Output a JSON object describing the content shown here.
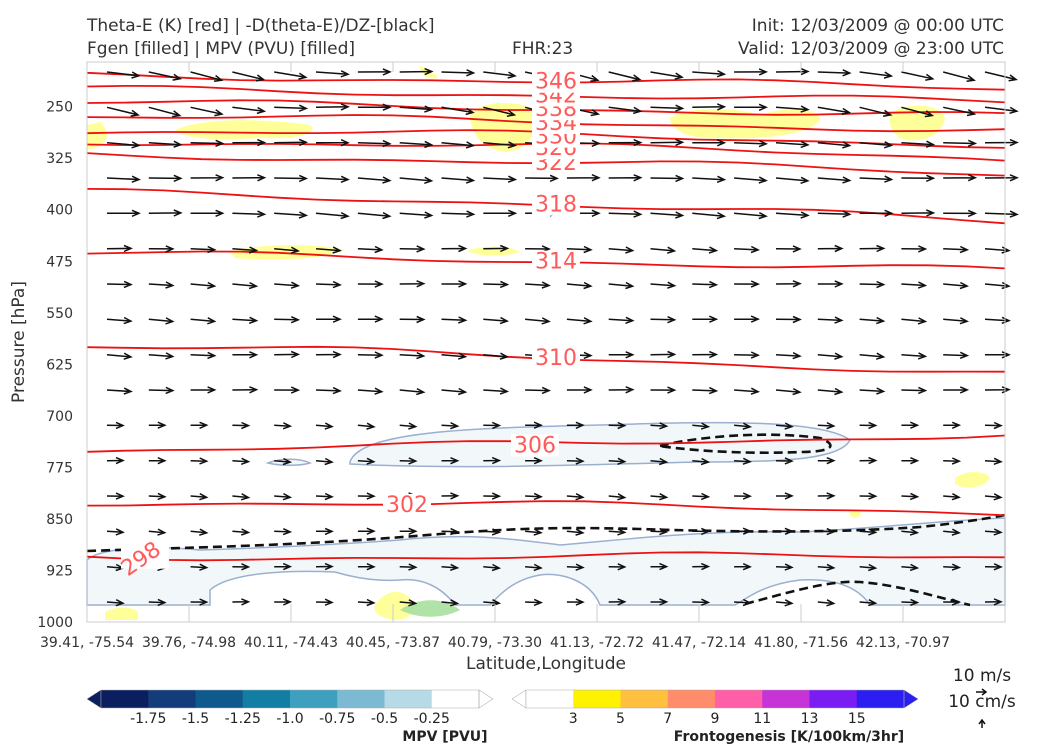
{
  "header": {
    "title_line1": "Theta-E (K) [red] | -D(theta-E)/DZ-[black]",
    "title_line2": "Fgen [filled] | MPV (PVU) [filled]",
    "fhr": "FHR:23",
    "init": "Init: 12/03/2009 @ 00:00 UTC",
    "valid": "Valid: 12/03/2009 @ 23:00 UTC"
  },
  "chart_data": {
    "type": "cross-section",
    "ylabel": "Pressure [hPa]",
    "xlabel": "Latitude,Longitude",
    "y_ticks": [
      "250",
      "325",
      "400",
      "475",
      "550",
      "625",
      "700",
      "775",
      "850",
      "925",
      "1000"
    ],
    "y_values": [
      250,
      325,
      400,
      475,
      550,
      625,
      700,
      775,
      850,
      925,
      1000
    ],
    "ylim": [
      1000,
      185
    ],
    "x_ticks": [
      "39.41, -75.54",
      "39.76, -74.98",
      "40.11, -74.43",
      "40.45, -73.87",
      "40.79, -73.30",
      "41.13, -72.72",
      "41.47, -72.14",
      "41.80, -71.56",
      "42.13, -70.97"
    ],
    "theta_e_contours": [
      {
        "label": "298",
        "pressure_at_start": 905,
        "pressure_at_end": 905
      },
      {
        "label": "302",
        "pressure_at_start": 825,
        "pressure_at_end": 840
      },
      {
        "label": "306",
        "pressure_at_start": 750,
        "pressure_at_end": 725
      },
      {
        "label": "310",
        "pressure_at_start": 600,
        "pressure_at_end": 640
      },
      {
        "label": "314",
        "pressure_at_start": 465,
        "pressure_at_end": 490
      },
      {
        "label": "318",
        "pressure_at_start": 375,
        "pressure_at_end": 420
      },
      {
        "label": "322",
        "pressure_at_start": 320,
        "pressure_at_end": 350
      },
      {
        "label": "326",
        "pressure_at_start": 300,
        "pressure_at_end": 325
      },
      {
        "label": "330",
        "pressure_at_start": 285,
        "pressure_at_end": 305
      },
      {
        "label": "334",
        "pressure_at_start": 265,
        "pressure_at_end": 285
      },
      {
        "label": "338",
        "pressure_at_start": 245,
        "pressure_at_end": 265
      },
      {
        "label": "342",
        "pressure_at_start": 225,
        "pressure_at_end": 245
      },
      {
        "label": "346",
        "pressure_at_start": 205,
        "pressure_at_end": 225
      }
    ],
    "visible_contour_labels": [
      "298",
      "302",
      "306",
      "310",
      "314",
      "318",
      "322",
      "326",
      "330",
      "334",
      "338",
      "342",
      "346"
    ],
    "mpv_colorbar": {
      "label": "MPV [PVU]",
      "ticks": [
        "-1.75",
        "-1.5",
        "-1.25",
        "-1.0",
        "-0.75",
        "-0.5",
        "-0.25"
      ],
      "colors": [
        "#0b1f5e",
        "#123d7a",
        "#0f5a8c",
        "#127ea3",
        "#3f9fbf",
        "#7bbad2",
        "#b7dbe6",
        "#ffffff"
      ]
    },
    "fgen_colorbar": {
      "label": "Frontogenesis [K/100km/3hr]",
      "ticks": [
        "3",
        "5",
        "7",
        "9",
        "11",
        "13",
        "15"
      ],
      "colors": [
        "#ffffff",
        "#fff200",
        "#ffc040",
        "#ff8c6b",
        "#ff5fa8",
        "#c633d6",
        "#7a1df2",
        "#2a1ff0"
      ]
    },
    "wind_key": {
      "speed": "10 m/s",
      "vertical": "10 cm/s"
    },
    "grid": false
  }
}
